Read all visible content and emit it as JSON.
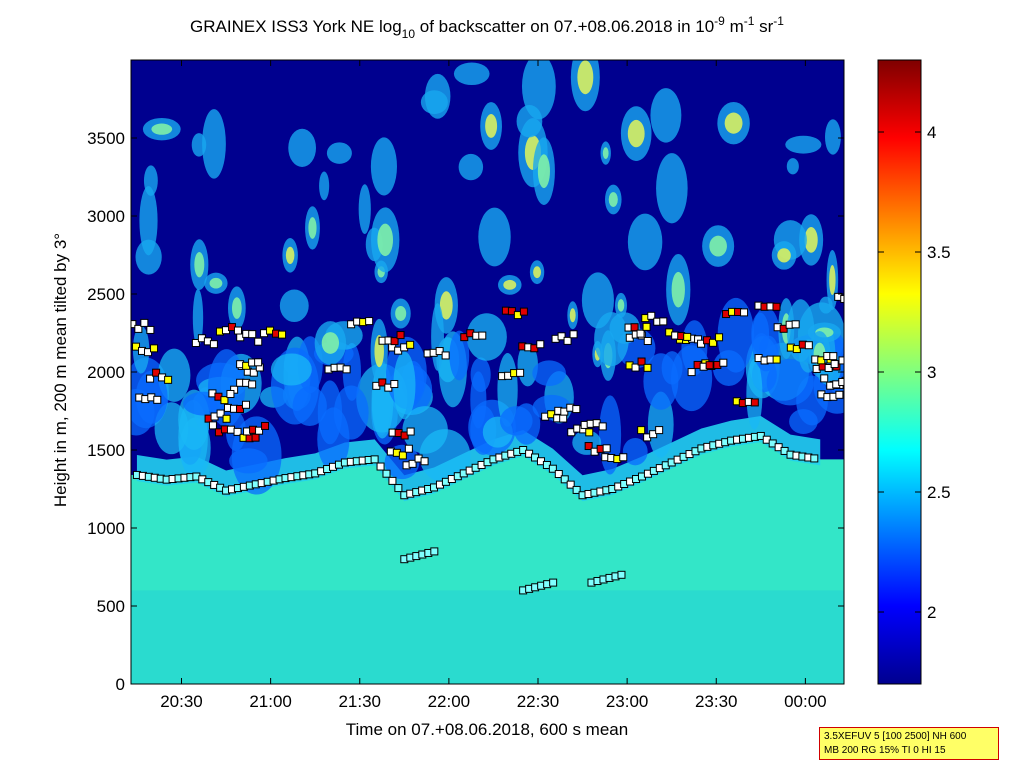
{
  "chart_data": {
    "type": "heatmap",
    "title": {
      "prefix": "GRAINEX ISS3 York NE log",
      "log_base": "10",
      "middle": " of backscatter on 07.+08.06.2018 in 10",
      "exp1": "-9",
      "unit_m": " m",
      "exp2": "-1",
      "unit_sr": " sr",
      "exp3": "-1"
    },
    "xlabel": "Time on 07.+08.06.2018, 600 s mean",
    "ylabel": "Height in m, 200 m mean tilted by 3°",
    "x_range": [
      "20:13",
      "00:13"
    ],
    "y_range": [
      0,
      4000
    ],
    "x_ticks": [
      "20:30",
      "21:00",
      "21:30",
      "22:00",
      "22:30",
      "23:00",
      "23:30",
      "00:00"
    ],
    "y_ticks": [
      0,
      500,
      1000,
      1500,
      2000,
      2500,
      3000,
      3500
    ],
    "colorbar": {
      "range": [
        1.7,
        4.3
      ],
      "ticks": [
        "2",
        "2.5",
        "3",
        "3.5",
        "4"
      ],
      "colormap": "jet"
    },
    "boundary_layer_height": [
      {
        "t": "20:15",
        "h": 1340
      },
      {
        "t": "20:25",
        "h": 1310
      },
      {
        "t": "20:35",
        "h": 1330
      },
      {
        "t": "20:45",
        "h": 1240
      },
      {
        "t": "20:55",
        "h": 1280
      },
      {
        "t": "21:05",
        "h": 1320
      },
      {
        "t": "21:15",
        "h": 1350
      },
      {
        "t": "21:25",
        "h": 1420
      },
      {
        "t": "21:35",
        "h": 1440
      },
      {
        "t": "21:45",
        "h": 1210
      },
      {
        "t": "21:55",
        "h": 1260
      },
      {
        "t": "22:05",
        "h": 1350
      },
      {
        "t": "22:15",
        "h": 1440
      },
      {
        "t": "22:25",
        "h": 1500
      },
      {
        "t": "22:35",
        "h": 1380
      },
      {
        "t": "22:45",
        "h": 1210
      },
      {
        "t": "22:55",
        "h": 1250
      },
      {
        "t": "23:05",
        "h": 1330
      },
      {
        "t": "23:15",
        "h": 1420
      },
      {
        "t": "23:25",
        "h": 1510
      },
      {
        "t": "23:35",
        "h": 1560
      },
      {
        "t": "23:45",
        "h": 1590
      },
      {
        "t": "23:55",
        "h": 1470
      },
      {
        "t": "00:05",
        "h": 1440
      }
    ],
    "colors": {
      "axis": "#000000",
      "low": "#00008f",
      "mid": "#00ffff",
      "high": "#7f0000",
      "marker_fill_white": "#ffffff",
      "marker_fill_cyan": "#7fffff",
      "marker_fill_red": "#e00000",
      "marker_fill_yellow": "#ffff00",
      "marker_edge": "#000000"
    }
  },
  "info_box": {
    "line1": "3.5XEFUV 5 [100 2500] NH 600",
    "line2": "MB 200 RG 15% TI 0 HI 15"
  }
}
